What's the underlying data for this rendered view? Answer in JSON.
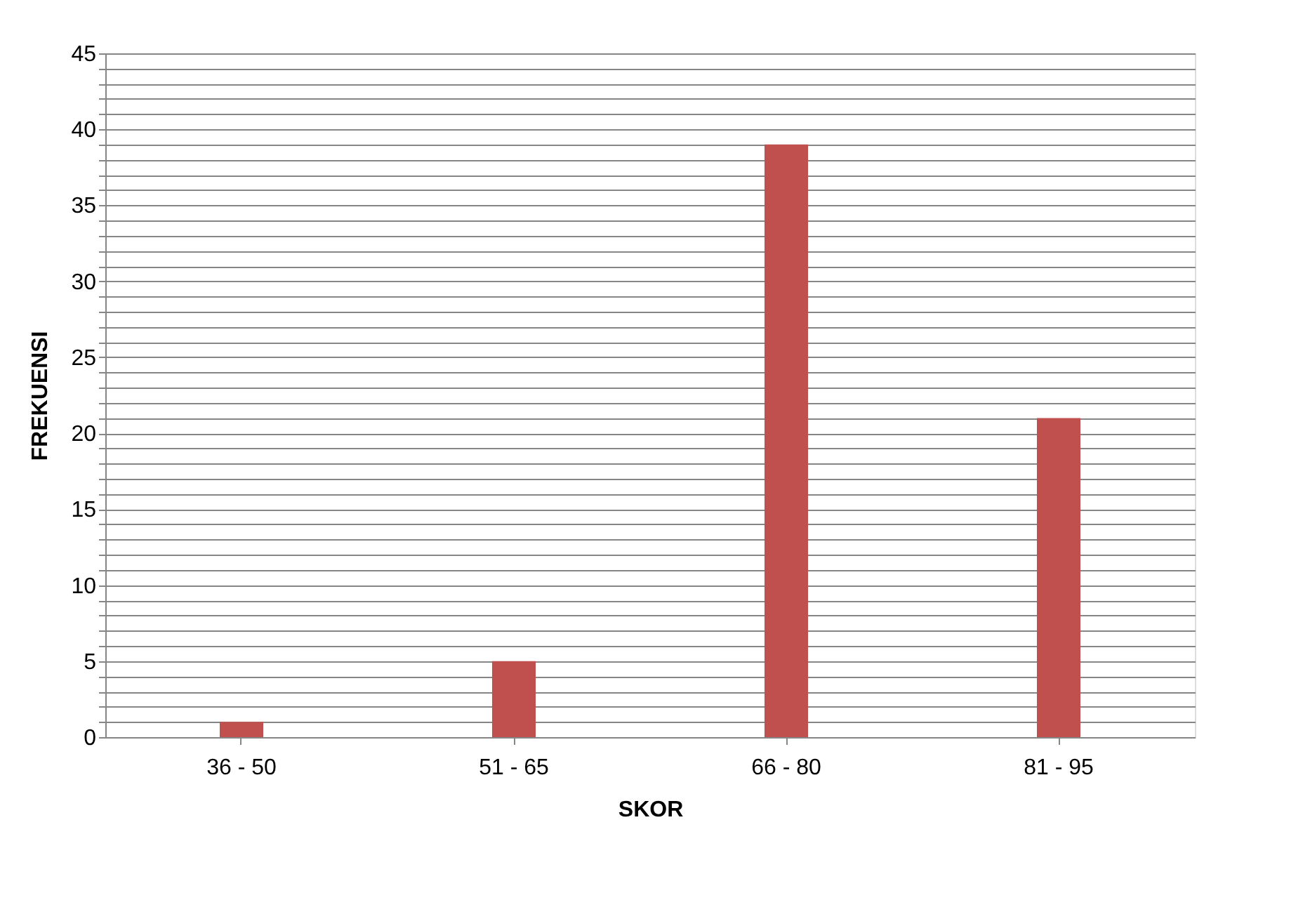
{
  "chart_data": {
    "type": "bar",
    "xlabel": "SKOR",
    "ylabel": "FREKUENSI",
    "categories": [
      "36 - 50",
      "51 - 65",
      "66 - 80",
      "81 - 95"
    ],
    "values": [
      1,
      5,
      39,
      21
    ],
    "color": "#c0504d",
    "ylim": [
      0,
      45
    ],
    "yticks": [
      0,
      {
        "value": 1,
        "label": null
      },
      {
        "value": 2,
        "label": null
      },
      {
        "value": 3,
        "label": null
      },
      {
        "value": 4,
        "label": null
      },
      5,
      {
        "value": 6,
        "label": null
      },
      {
        "value": 7,
        "label": null
      },
      {
        "value": 8,
        "label": null
      },
      {
        "value": 9,
        "label": null
      },
      10,
      {
        "value": 11,
        "label": null
      },
      {
        "value": 12,
        "label": null
      },
      {
        "value": 13,
        "label": null
      },
      {
        "value": 14,
        "label": null
      },
      15,
      {
        "value": 16,
        "label": null
      },
      {
        "value": 17,
        "label": null
      },
      {
        "value": 18,
        "label": null
      },
      {
        "value": 19,
        "label": null
      },
      20,
      {
        "value": 21,
        "label": null
      },
      {
        "value": 22,
        "label": null
      },
      {
        "value": 23,
        "label": null
      },
      {
        "value": 24,
        "label": null
      },
      25,
      {
        "value": 26,
        "label": null
      },
      {
        "value": 27,
        "label": null
      },
      {
        "value": 28,
        "label": null
      },
      {
        "value": 29,
        "label": null
      },
      30,
      {
        "value": 31,
        "label": null
      },
      {
        "value": 32,
        "label": null
      },
      {
        "value": 33,
        "label": null
      },
      {
        "value": 34,
        "label": null
      },
      35,
      {
        "value": 36,
        "label": null
      },
      {
        "value": 37,
        "label": null
      },
      {
        "value": 38,
        "label": null
      },
      {
        "value": 39,
        "label": null
      },
      40,
      {
        "value": 41,
        "label": null
      },
      {
        "value": 42,
        "label": null
      },
      {
        "value": 43,
        "label": null
      },
      {
        "value": 44,
        "label": null
      },
      45
    ],
    "grid": true
  }
}
